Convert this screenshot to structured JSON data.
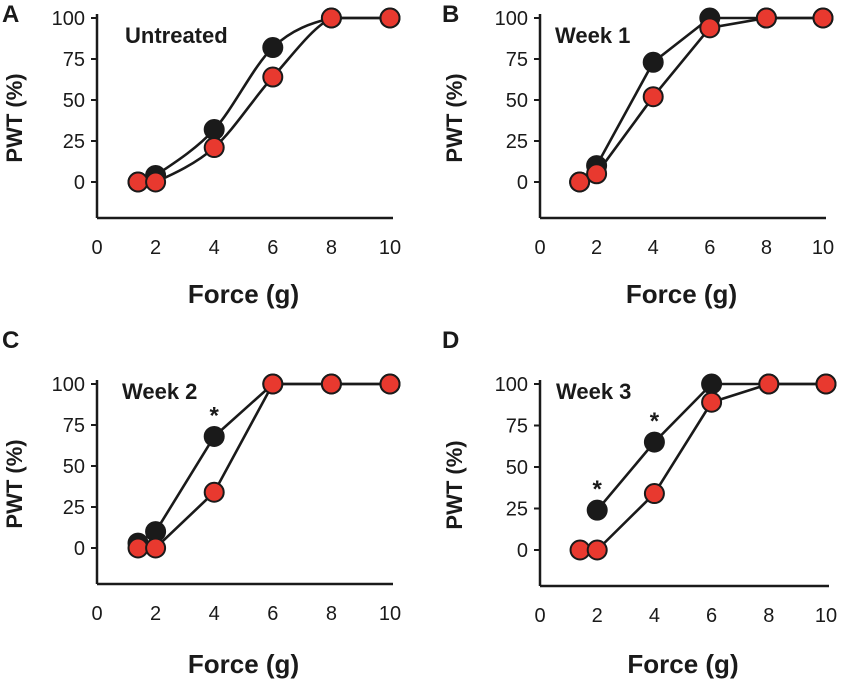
{
  "figure": {
    "font_note": "four panels sharing axes",
    "colors": {
      "black_series": "#1a1a1a",
      "red_series": "#e8392f",
      "axis": "#1a1a1a"
    }
  },
  "chart_data": [
    {
      "type": "line",
      "panel": "A",
      "title": "Untreated",
      "xlabel": "Force (g)",
      "ylabel": "PWT (%)",
      "xlim": [
        0,
        10
      ],
      "ylim": [
        -20,
        100
      ],
      "xticks": [
        0,
        2,
        4,
        6,
        8,
        10
      ],
      "yticks": [
        0,
        25,
        50,
        75,
        100
      ],
      "x_tick_labels": [
        "0",
        "2",
        "4",
        "6",
        "8",
        "10"
      ],
      "y_tick_labels": [
        "0",
        "25",
        "50",
        "75",
        "100"
      ],
      "series": [
        {
          "name": "black",
          "color": "#1a1a1a",
          "x": [
            1.4,
            2,
            4,
            6,
            8,
            10
          ],
          "y": [
            0,
            4,
            32,
            82,
            100,
            100
          ]
        },
        {
          "name": "red",
          "color": "#e8392f",
          "x": [
            1.4,
            2,
            4,
            6,
            8,
            10
          ],
          "y": [
            0,
            0,
            21,
            64,
            100,
            100
          ]
        }
      ],
      "smooth": true,
      "annotations": []
    },
    {
      "type": "line",
      "panel": "B",
      "title": "Week 1",
      "xlabel": "Force (g)",
      "ylabel": "PWT (%)",
      "xlim": [
        0,
        10
      ],
      "ylim": [
        -20,
        100
      ],
      "xticks": [
        0,
        2,
        4,
        6,
        8,
        10
      ],
      "yticks": [
        0,
        25,
        50,
        75,
        100
      ],
      "x_tick_labels": [
        "0",
        "2",
        "4",
        "6",
        "8",
        "10"
      ],
      "y_tick_labels": [
        "0",
        "25",
        "50",
        "75",
        "100"
      ],
      "series": [
        {
          "name": "black",
          "color": "#1a1a1a",
          "x": [
            1.4,
            2,
            4,
            6,
            8,
            10
          ],
          "y": [
            0,
            10,
            73,
            100,
            100,
            100
          ]
        },
        {
          "name": "red",
          "color": "#e8392f",
          "x": [
            1.4,
            2,
            4,
            6,
            8,
            10
          ],
          "y": [
            0,
            5,
            52,
            94,
            100,
            100
          ]
        }
      ],
      "smooth": false,
      "annotations": []
    },
    {
      "type": "line",
      "panel": "C",
      "title": "Week 2",
      "xlabel": "Force (g)",
      "ylabel": "PWT (%)",
      "xlim": [
        0,
        10
      ],
      "ylim": [
        -20,
        100
      ],
      "xticks": [
        0,
        2,
        4,
        6,
        8,
        10
      ],
      "yticks": [
        0,
        25,
        50,
        75,
        100
      ],
      "x_tick_labels": [
        "0",
        "2",
        "4",
        "6",
        "8",
        "10"
      ],
      "y_tick_labels": [
        "0",
        "25",
        "50",
        "75",
        "100"
      ],
      "series": [
        {
          "name": "black",
          "color": "#1a1a1a",
          "x": [
            1.4,
            2,
            4,
            6,
            8,
            10
          ],
          "y": [
            3,
            10,
            68,
            100,
            100,
            100
          ]
        },
        {
          "name": "red",
          "color": "#e8392f",
          "x": [
            1.4,
            2,
            4,
            6,
            8,
            10
          ],
          "y": [
            0,
            0,
            34,
            100,
            100,
            100
          ]
        }
      ],
      "smooth": false,
      "annotations": [
        {
          "text": "*",
          "x": 4,
          "y": 68
        }
      ]
    },
    {
      "type": "line",
      "panel": "D",
      "title": "Week 3",
      "xlabel": "Force (g)",
      "ylabel": "PWT (%)",
      "xlim": [
        0,
        10
      ],
      "ylim": [
        -20,
        100
      ],
      "xticks": [
        0,
        2,
        4,
        6,
        8,
        10
      ],
      "yticks": [
        0,
        25,
        50,
        75,
        100
      ],
      "x_tick_labels": [
        "0",
        "2",
        "4",
        "6",
        "8",
        "10"
      ],
      "y_tick_labels": [
        "0",
        "25",
        "50",
        "75",
        "100"
      ],
      "series": [
        {
          "name": "black",
          "color": "#1a1a1a",
          "x": [
            2,
            4,
            6,
            8,
            10
          ],
          "y": [
            24,
            65,
            100,
            100,
            100
          ]
        },
        {
          "name": "red",
          "color": "#e8392f",
          "x": [
            1.4,
            2,
            4,
            6,
            8,
            10
          ],
          "y": [
            0,
            0,
            34,
            89,
            100,
            100
          ]
        }
      ],
      "smooth": false,
      "annotations": [
        {
          "text": "*",
          "x": 2,
          "y": 24
        },
        {
          "text": "*",
          "x": 4,
          "y": 65
        }
      ]
    }
  ]
}
